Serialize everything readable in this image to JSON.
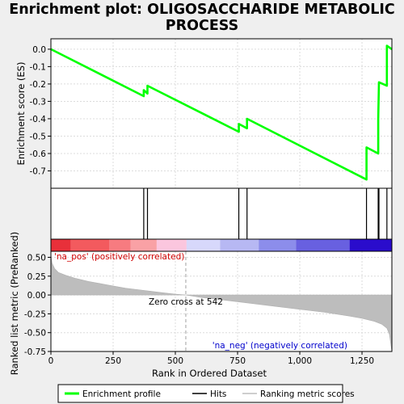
{
  "title_line1": "Enrichment plot: OLIGOSACCHARIDE METABOLIC",
  "title_line2": "PROCESS",
  "chart_data": {
    "type": "line",
    "n_genes": 1370,
    "xlabel": "Rank in Ordered Dataset",
    "xticks": [
      0,
      250,
      500,
      750,
      1000,
      1250
    ],
    "xtick_labels": [
      "0",
      "250",
      "500",
      "750",
      "1,000",
      "1,250"
    ],
    "es_panel": {
      "ylabel": "Enrichment score (ES)",
      "ylim": [
        -0.8,
        0.06
      ],
      "yticks": [
        0.0,
        -0.1,
        -0.2,
        -0.3,
        -0.4,
        -0.5,
        -0.6,
        -0.7
      ],
      "ytick_labels": [
        "0.0",
        "-0.1",
        "-0.2",
        "-0.3",
        "-0.4",
        "-0.5",
        "-0.6",
        "-0.7"
      ],
      "grid": true,
      "color": "#00ff00",
      "x": [
        0,
        373,
        373,
        388,
        388,
        755,
        755,
        788,
        788,
        1268,
        1268,
        1315,
        1315,
        1318,
        1318,
        1350,
        1350,
        1370
      ],
      "y": [
        0,
        -0.27,
        -0.235,
        -0.255,
        -0.21,
        -0.475,
        -0.43,
        -0.455,
        -0.4,
        -0.75,
        -0.565,
        -0.6,
        -0.4,
        -0.19,
        -0.19,
        -0.21,
        0.02,
        0
      ]
    },
    "hits": [
      373,
      388,
      755,
      788,
      1268,
      1315,
      1318,
      1350
    ],
    "ranked_panel": {
      "ylabel": "Ranked list metric (PreRanked)",
      "ylim": [
        -0.75,
        0.58
      ],
      "yticks": [
        0.5,
        0.25,
        0.0,
        -0.25,
        -0.5,
        -0.75
      ],
      "ytick_labels": [
        "0.50",
        "0.25",
        "0.00",
        "-0.25",
        "-0.50",
        "-0.75"
      ],
      "grid": true,
      "curve_x": [
        0,
        5,
        15,
        30,
        60,
        100,
        150,
        200,
        250,
        300,
        350,
        400,
        450,
        500,
        542,
        600,
        700,
        800,
        900,
        1000,
        1100,
        1200,
        1250,
        1300,
        1330,
        1350,
        1360,
        1370
      ],
      "curve_y": [
        0.52,
        0.42,
        0.35,
        0.3,
        0.26,
        0.22,
        0.18,
        0.15,
        0.12,
        0.09,
        0.07,
        0.05,
        0.03,
        0.01,
        0,
        -0.03,
        -0.07,
        -0.11,
        -0.15,
        -0.19,
        -0.23,
        -0.28,
        -0.31,
        -0.35,
        -0.39,
        -0.44,
        -0.52,
        -0.75
      ],
      "zero_cross": 542,
      "zero_cross_label": "Zero cross at 542",
      "pos_label": "'na_pos' (positively correlated)",
      "neg_label": "'na_neg' (negatively correlated)"
    },
    "color_bar": [
      {
        "x0": 0,
        "x1": 80,
        "color": "#e8303a"
      },
      {
        "x0": 80,
        "x1": 235,
        "color": "#f35a5e"
      },
      {
        "x0": 235,
        "x1": 320,
        "color": "#f77b80"
      },
      {
        "x0": 320,
        "x1": 425,
        "color": "#f9a1a5"
      },
      {
        "x0": 425,
        "x1": 545,
        "color": "#fbc6de"
      },
      {
        "x0": 545,
        "x1": 680,
        "color": "#d7d8fb"
      },
      {
        "x0": 680,
        "x1": 835,
        "color": "#b7b8f3"
      },
      {
        "x0": 835,
        "x1": 985,
        "color": "#8c8deb"
      },
      {
        "x0": 985,
        "x1": 1200,
        "color": "#6860e0"
      },
      {
        "x0": 1200,
        "x1": 1370,
        "color": "#2a0ccc"
      }
    ],
    "legend": {
      "placement": "bottom",
      "items": [
        "Enrichment profile",
        "Hits",
        "Ranking metric scores"
      ]
    }
  }
}
